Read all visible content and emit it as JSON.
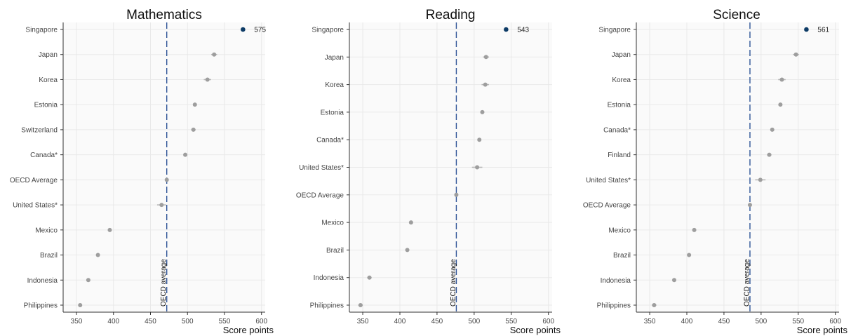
{
  "colors": {
    "highlight": "#0d3b66",
    "point": "#9e9e9e",
    "ci": "#b8b8b8",
    "oecd_line": "#2f5597",
    "plot_bg": "#fafafa",
    "grid": "#e9e9e9",
    "axis": "#333333"
  },
  "chart_data": [
    {
      "type": "scatter",
      "title": "Mathematics",
      "xlabel": "Score points",
      "xlim": [
        332,
        605
      ],
      "xticks": [
        "350",
        "400",
        "450",
        "500",
        "550",
        "600"
      ],
      "xtick_values": [
        350,
        400,
        450,
        500,
        550,
        600
      ],
      "reference": {
        "label": "OECD average",
        "value": 472
      },
      "categories": [
        "Singapore",
        "Japan",
        "Korea",
        "Estonia",
        "Switzerland",
        "Canada*",
        "OECD Average",
        "United States*",
        "Mexico",
        "Brazil",
        "Indonesia",
        "Philippines"
      ],
      "values": [
        575,
        536,
        527,
        510,
        508,
        497,
        472,
        465,
        395,
        379,
        366,
        355
      ],
      "ci_half": [
        0,
        4,
        5,
        2,
        3,
        2,
        0,
        6,
        2,
        1,
        2,
        2
      ],
      "highlight": {
        "category": "Singapore",
        "label": "575"
      }
    },
    {
      "type": "scatter",
      "title": "Reading",
      "xlabel": "Score points",
      "xlim": [
        332,
        605
      ],
      "xticks": [
        "350",
        "400",
        "450",
        "500",
        "550",
        "600"
      ],
      "xtick_values": [
        350,
        400,
        450,
        500,
        550,
        600
      ],
      "reference": {
        "label": "OECD average",
        "value": 476
      },
      "categories": [
        "Singapore",
        "Japan",
        "Korea",
        "Estonia",
        "Canada*",
        "United States*",
        "OECD Average",
        "Mexico",
        "Brazil",
        "Indonesia",
        "Philippines"
      ],
      "values": [
        543,
        516,
        515,
        511,
        507,
        504,
        476,
        415,
        410,
        359,
        347
      ],
      "ci_half": [
        0,
        4,
        5,
        2,
        2,
        7,
        0,
        2,
        1,
        3,
        3
      ],
      "highlight": {
        "category": "Singapore",
        "label": "543"
      }
    },
    {
      "type": "scatter",
      "title": "Science",
      "xlabel": "Score points",
      "xlim": [
        332,
        605
      ],
      "xticks": [
        "350",
        "400",
        "450",
        "500",
        "550",
        "600"
      ],
      "xtick_values": [
        350,
        400,
        450,
        500,
        550,
        600
      ],
      "reference": {
        "label": "OECD average",
        "value": 485
      },
      "categories": [
        "Singapore",
        "Japan",
        "Korea",
        "Estonia",
        "Canada*",
        "Finland",
        "United States*",
        "OECD Average",
        "Mexico",
        "Brazil",
        "Indonesia",
        "Philippines"
      ],
      "values": [
        561,
        547,
        528,
        526,
        515,
        511,
        499,
        485,
        410,
        403,
        383,
        356
      ],
      "ci_half": [
        0,
        4,
        5,
        2,
        2,
        3,
        7,
        0,
        2,
        1,
        2,
        3
      ],
      "highlight": {
        "category": "Singapore",
        "label": "561"
      }
    }
  ]
}
